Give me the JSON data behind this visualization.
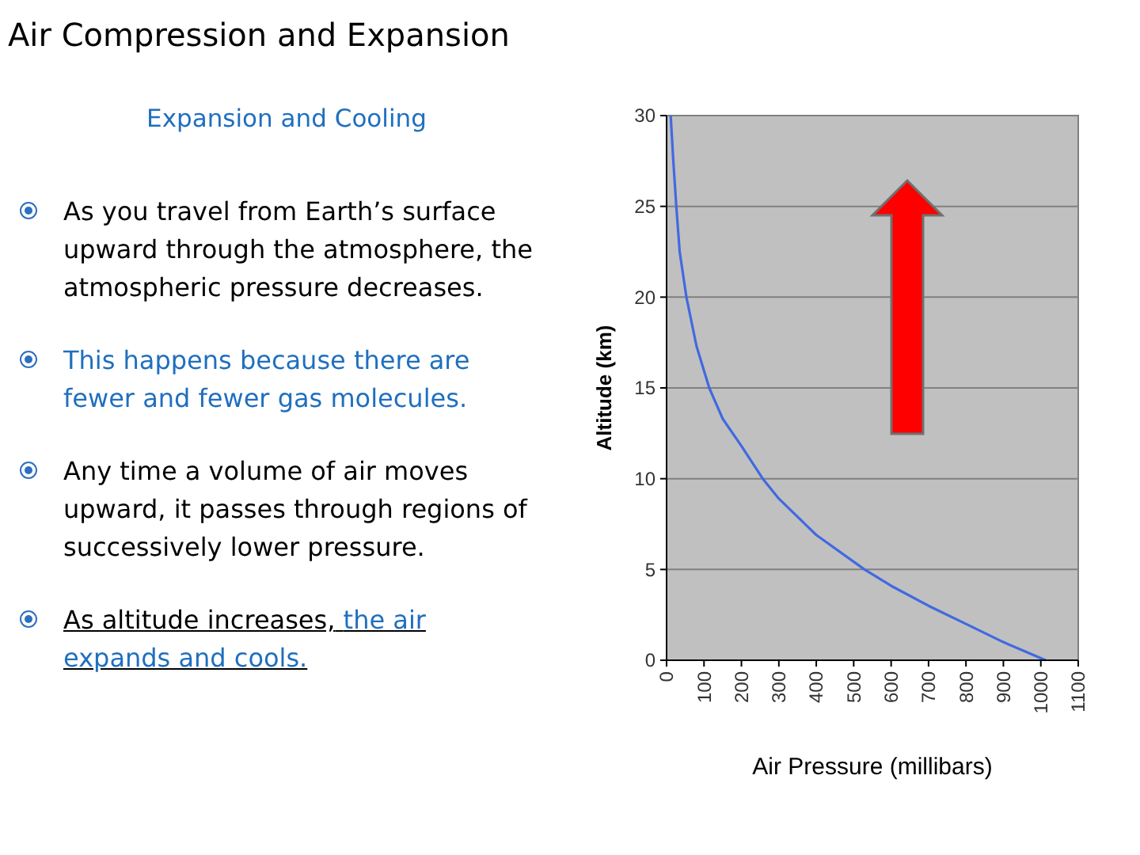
{
  "chart_data": {
    "type": "line",
    "title": "Air Compression and Expansion",
    "subtitle": "Expansion and Cooling",
    "xlabel": "Air Pressure (millibars)",
    "ylabel": "Altitude (km)",
    "annotations": [
      "As you travel from Earth’s surface upward through the atmosphere, the atmospheric pressure decreases.",
      "This happens because there are fewer and fewer gas molecules.",
      "Any time a volume of air moves upward, it passes through regions of successively lower pressure.",
      "As altitude increases,",
      "the air expands and cools."
    ],
    "series": [
      {
        "color": "#4169e1",
        "x": [
          1013,
          900,
          800,
          700,
          600,
          529,
          400,
          300,
          257,
          200,
          150,
          114,
          80,
          53,
          35,
          26,
          18,
          11
        ],
        "values": [
          0,
          1,
          2,
          3,
          4.1,
          5,
          6.9,
          8.9,
          10,
          11.8,
          13.3,
          15,
          17.3,
          20,
          22.5,
          25,
          27.5,
          30
        ]
      }
    ],
    "xlim": [
      0,
      1100
    ],
    "xticks": [
      0,
      100,
      200,
      300,
      400,
      500,
      600,
      700,
      800,
      900,
      1000,
      1100
    ],
    "ylim": [
      0,
      30
    ],
    "yticks": [
      0,
      5,
      10,
      15,
      20,
      25,
      30
    ],
    "grid": "y",
    "marker": "none",
    "line_style": "solid"
  }
}
